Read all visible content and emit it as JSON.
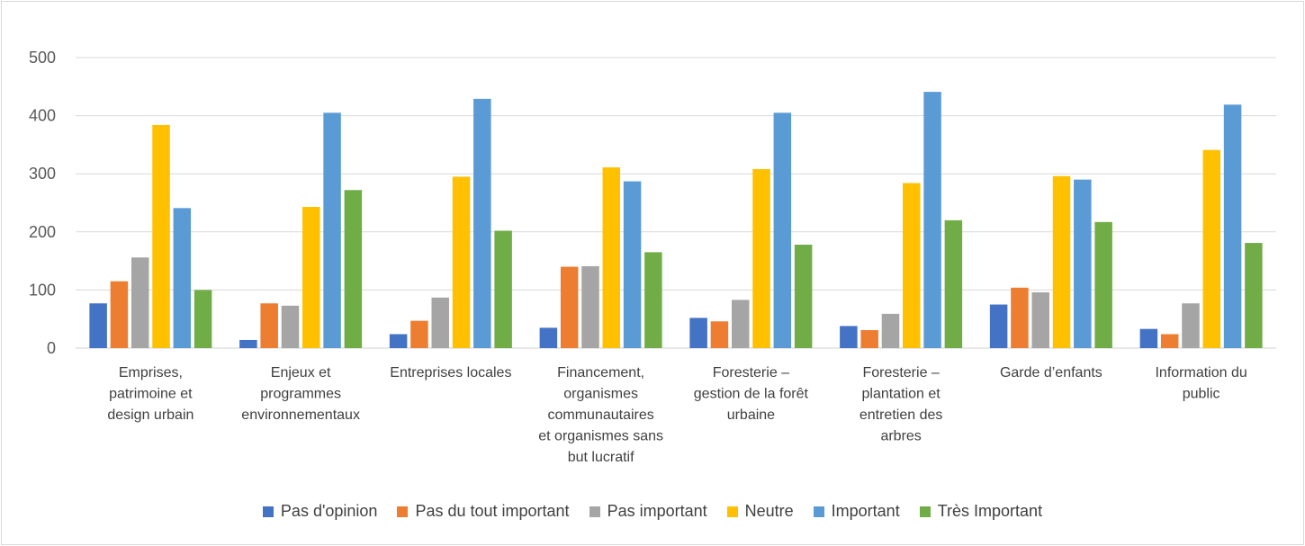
{
  "chart_data": {
    "type": "bar",
    "title": "",
    "xlabel": "",
    "ylabel": "",
    "ylim": [
      0,
      500
    ],
    "yticks": [
      0,
      100,
      200,
      300,
      400,
      500
    ],
    "grid": true,
    "legend_position": "bottom",
    "categories": [
      [
        "Emprises,",
        "patrimoine et",
        "design urbain"
      ],
      [
        "Enjeux et",
        "programmes",
        "environnementaux"
      ],
      [
        "Entreprises locales"
      ],
      [
        "Financement,",
        "organismes",
        "communautaires",
        "et organismes sans",
        "but lucratif"
      ],
      [
        "Foresterie –",
        "gestion de la forêt",
        "urbaine"
      ],
      [
        "Foresterie –",
        "plantation et",
        "entretien des",
        "arbres"
      ],
      [
        "Garde d’enfants"
      ],
      [
        "Information du",
        "public"
      ]
    ],
    "series": [
      {
        "name": "Pas d'opinion",
        "color": "#4472c4",
        "values": [
          77,
          14,
          24,
          35,
          52,
          38,
          75,
          33
        ]
      },
      {
        "name": "Pas du tout important",
        "color": "#ed7d31",
        "values": [
          115,
          77,
          47,
          140,
          46,
          31,
          104,
          24
        ]
      },
      {
        "name": "Pas important",
        "color": "#a5a5a5",
        "values": [
          156,
          73,
          87,
          141,
          83,
          59,
          96,
          77
        ]
      },
      {
        "name": "Neutre",
        "color": "#ffc000",
        "values": [
          384,
          243,
          295,
          311,
          308,
          284,
          296,
          341
        ]
      },
      {
        "name": "Important",
        "color": "#5b9bd5",
        "values": [
          241,
          405,
          429,
          287,
          405,
          441,
          290,
          419
        ]
      },
      {
        "name": "Très Important",
        "color": "#70ad47",
        "values": [
          100,
          272,
          202,
          165,
          178,
          220,
          217,
          181
        ]
      }
    ]
  }
}
